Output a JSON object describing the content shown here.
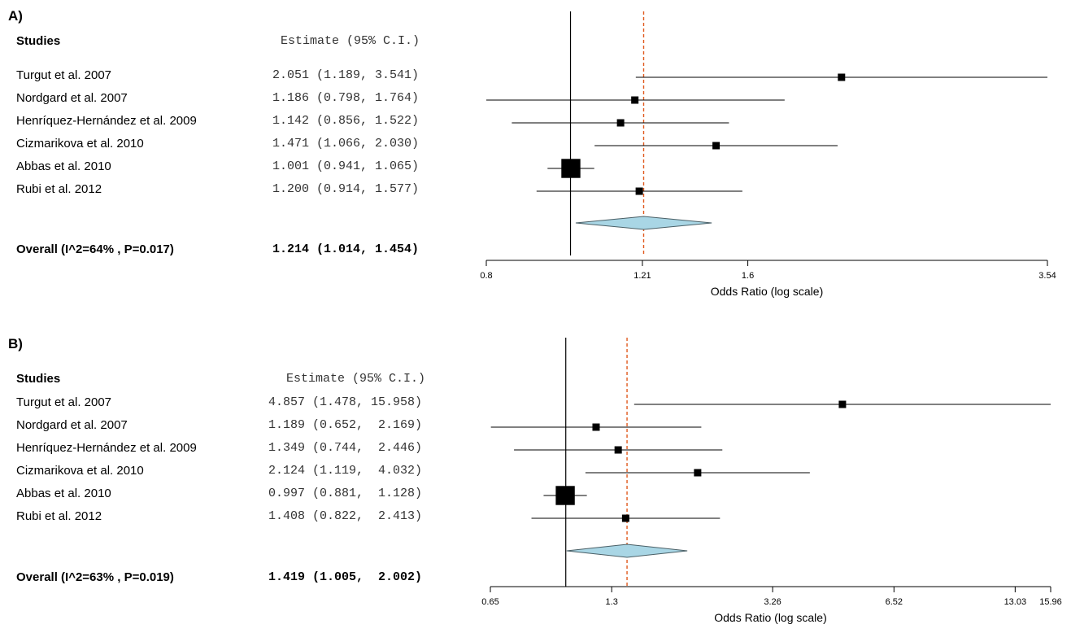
{
  "chart_data": [
    {
      "type": "forest",
      "panel_label": "A)",
      "header_studies": "Studies",
      "header_estimate": "Estimate (95% C.I.)",
      "xlabel": "Odds Ratio (log scale)",
      "log_scale": true,
      "xlim": [
        0.8,
        3.54
      ],
      "xticks": [
        0.8,
        1.21,
        1.6,
        3.54
      ],
      "xtick_labels": [
        "0.8",
        "1.21",
        "1.6",
        "3.54"
      ],
      "null_line": 1.0,
      "summary_line": 1.214,
      "studies": [
        {
          "name": "Turgut et al. 2007",
          "estimate": 2.051,
          "lower": 1.189,
          "upper": 3.541,
          "label": "2.051 (1.189, 3.541)",
          "box": 1
        },
        {
          "name": "Nordgard et al. 2007",
          "estimate": 1.186,
          "lower": 0.798,
          "upper": 1.764,
          "label": "1.186 (0.798, 1.764)",
          "box": 1
        },
        {
          "name": "Henríquez-Hernández et al. 2009",
          "estimate": 1.142,
          "lower": 0.856,
          "upper": 1.522,
          "label": "1.142 (0.856, 1.522)",
          "box": 1
        },
        {
          "name": "Cizmarikova et al. 2010",
          "estimate": 1.471,
          "lower": 1.066,
          "upper": 2.03,
          "label": "1.471 (1.066, 2.030)",
          "box": 1
        },
        {
          "name": "Abbas et al. 2010",
          "estimate": 1.001,
          "lower": 0.941,
          "upper": 1.065,
          "label": "1.001 (0.941, 1.065)",
          "box": 2.6
        },
        {
          "name": "Rubi et al. 2012",
          "estimate": 1.2,
          "lower": 0.914,
          "upper": 1.577,
          "label": "1.200 (0.914, 1.577)",
          "box": 1
        }
      ],
      "overall": {
        "name": "Overall (I^2=64% , P=0.017)",
        "estimate": 1.214,
        "lower": 1.014,
        "upper": 1.454,
        "label": "1.214 (1.014, 1.454)"
      },
      "colors": {
        "diamond_fill": "#a9d6e5",
        "summary_line": "#e05a1e",
        "marks": "#000000"
      }
    },
    {
      "type": "forest",
      "panel_label": "B)",
      "header_studies": "Studies",
      "header_estimate": "Estimate (95% C.I.)",
      "xlabel": "Odds Ratio (log scale)",
      "log_scale": true,
      "xlim": [
        0.65,
        15.96
      ],
      "xticks": [
        0.65,
        1.3,
        3.26,
        6.52,
        13.03,
        15.96
      ],
      "xtick_labels": [
        "0.65",
        "1.3",
        "3.26",
        "6.52",
        "13.03",
        "15.96"
      ],
      "null_line": 1.0,
      "summary_line": 1.419,
      "studies": [
        {
          "name": "Turgut et al. 2007",
          "estimate": 4.857,
          "lower": 1.478,
          "upper": 15.958,
          "label": "4.857 (1.478, 15.958)",
          "box": 1
        },
        {
          "name": "Nordgard et al. 2007",
          "estimate": 1.189,
          "lower": 0.652,
          "upper": 2.169,
          "label": "1.189 (0.652,  2.169)",
          "box": 1
        },
        {
          "name": "Henríquez-Hernández et al. 2009",
          "estimate": 1.349,
          "lower": 0.744,
          "upper": 2.446,
          "label": "1.349 (0.744,  2.446)",
          "box": 1
        },
        {
          "name": "Cizmarikova et al. 2010",
          "estimate": 2.124,
          "lower": 1.119,
          "upper": 4.032,
          "label": "2.124 (1.119,  4.032)",
          "box": 1
        },
        {
          "name": "Abbas et al. 2010",
          "estimate": 0.997,
          "lower": 0.881,
          "upper": 1.128,
          "label": "0.997 (0.881,  1.128)",
          "box": 2.6
        },
        {
          "name": "Rubi et al. 2012",
          "estimate": 1.408,
          "lower": 0.822,
          "upper": 2.413,
          "label": "1.408 (0.822,  2.413)",
          "box": 1
        }
      ],
      "overall": {
        "name": "Overall (I^2=63% , P=0.019)",
        "estimate": 1.419,
        "lower": 1.005,
        "upper": 2.002,
        "label": "1.419 (1.005,  2.002)"
      },
      "colors": {
        "diamond_fill": "#a9d6e5",
        "summary_line": "#e05a1e",
        "marks": "#000000"
      }
    }
  ]
}
